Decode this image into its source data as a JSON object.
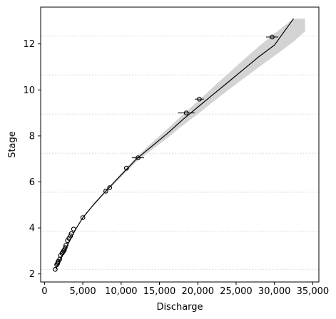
{
  "chart_data": {
    "type": "scatter",
    "xlabel": "Discharge",
    "ylabel": "Stage",
    "xlim": [
      -500,
      35800
    ],
    "ylim": [
      1.65,
      13.6
    ],
    "x_ticks": [
      0,
      5000,
      10000,
      15000,
      20000,
      25000,
      30000,
      35000
    ],
    "x_tick_labels": [
      "0",
      "5,000",
      "10,000",
      "15,000",
      "20,000",
      "25,000",
      "30,000",
      "35,000"
    ],
    "y_ticks": [
      2,
      4,
      6,
      8,
      10,
      12
    ],
    "y_tick_labels": [
      "2",
      "4",
      "6",
      "8",
      "10",
      "12"
    ],
    "grid": "horizontal dotted lines at break stages",
    "break_lines_y": [
      12.35,
      10.65,
      8.95,
      7.25,
      5.55,
      3.85,
      2.2
    ],
    "rating_curve": {
      "x": [
        1500,
        2000,
        3000,
        4000,
        5000,
        6500,
        8000,
        10000,
        12000,
        14000,
        16000,
        18000,
        20000,
        22000,
        24000,
        26000,
        28000,
        30000,
        32500
      ],
      "y": [
        2.2,
        2.6,
        3.25,
        3.9,
        4.45,
        5.05,
        5.6,
        6.3,
        7.0,
        7.55,
        8.1,
        8.7,
        9.25,
        9.8,
        10.35,
        10.9,
        11.45,
        11.95,
        13.1
      ]
    },
    "uncertainty_band": {
      "x": [
        1500,
        2000,
        3000,
        4000,
        5000,
        6500,
        8000,
        10000,
        12000,
        14000,
        16000,
        18000,
        20000,
        22000,
        24000,
        26000,
        28000,
        30000,
        32500,
        34000
      ],
      "lower_y": [
        2.18,
        2.58,
        3.22,
        3.87,
        4.42,
        5.0,
        5.55,
        6.22,
        6.88,
        7.4,
        7.9,
        8.45,
        8.95,
        9.48,
        10.0,
        10.5,
        11.0,
        11.48,
        12.1,
        12.55
      ],
      "upper_y": [
        2.22,
        2.62,
        3.28,
        3.93,
        4.48,
        5.1,
        5.65,
        6.38,
        7.08,
        7.7,
        8.3,
        8.92,
        9.5,
        10.12,
        10.72,
        11.32,
        11.9,
        12.45,
        13.1,
        13.1
      ]
    },
    "observations": {
      "x": [
        1400,
        1600,
        1700,
        1750,
        1800,
        2000,
        2100,
        2300,
        2400,
        2500,
        2600,
        2700,
        2800,
        3000,
        3200,
        3400,
        3500,
        3800,
        5000,
        8000,
        8500,
        10700,
        12200,
        18500,
        20200,
        29700
      ],
      "y": [
        2.2,
        2.4,
        2.45,
        2.5,
        2.55,
        2.65,
        2.8,
        2.9,
        2.95,
        3.0,
        3.05,
        3.15,
        3.25,
        3.45,
        3.55,
        3.65,
        3.75,
        3.95,
        4.45,
        5.6,
        5.75,
        6.6,
        7.05,
        9.0,
        9.6,
        12.3
      ],
      "x_err": [
        0,
        0,
        0,
        0,
        0,
        0,
        0,
        0,
        0,
        0,
        0,
        0,
        0,
        0,
        0,
        0,
        0,
        0,
        0,
        0,
        0,
        0,
        800,
        1100,
        600,
        800
      ]
    }
  }
}
